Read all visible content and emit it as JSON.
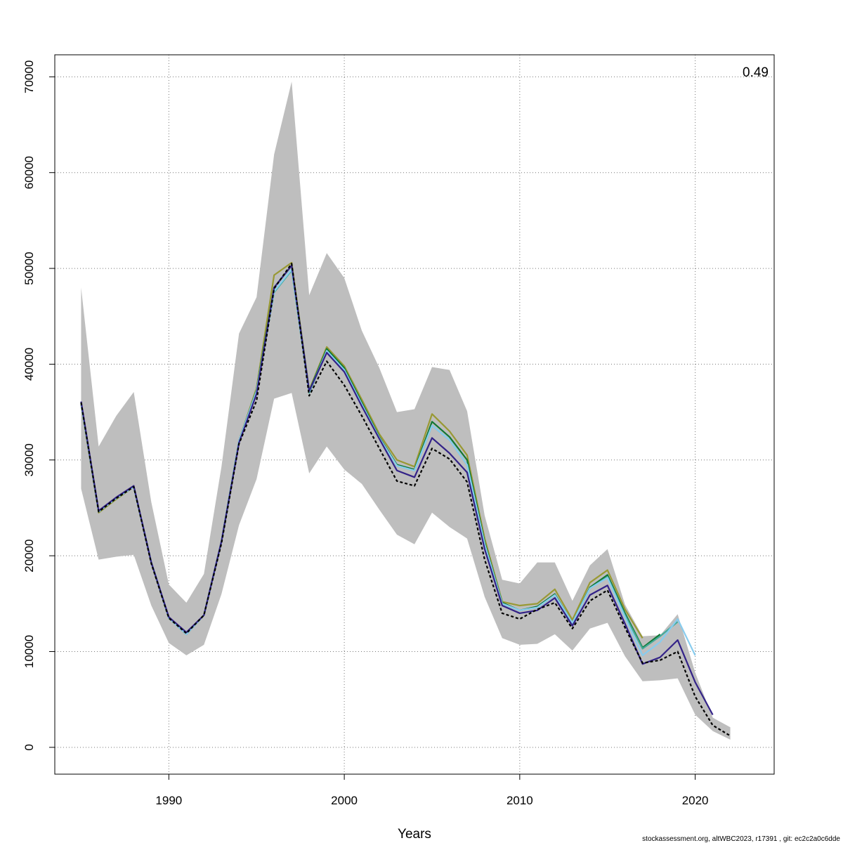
{
  "chart_data": {
    "type": "line",
    "title": "",
    "xlabel": "Years",
    "ylabel": "",
    "xlim": [
      1983.5,
      2024.5
    ],
    "ylim": [
      -2800,
      72300
    ],
    "xticks": [
      1990,
      2000,
      2010,
      2020
    ],
    "yticks": [
      0,
      10000,
      20000,
      30000,
      40000,
      50000,
      60000,
      70000
    ],
    "grid": true,
    "annotation": "0.49",
    "footer": "stockassessment.org, altWBC2023, r17391 , git: ec2c2a0c6dde",
    "band": {
      "color": "#bebebe",
      "x": [
        1985,
        1986,
        1987,
        1988,
        1989,
        1990,
        1991,
        1992,
        1993,
        1994,
        1995,
        1996,
        1997,
        1998,
        1999,
        2000,
        2001,
        2002,
        2003,
        2004,
        2005,
        2006,
        2007,
        2008,
        2009,
        2010,
        2011,
        2012,
        2013,
        2014,
        2015,
        2016,
        2017,
        2018,
        2019,
        2020,
        2021,
        2022
      ],
      "lower": [
        27000,
        19600,
        19900,
        20100,
        14800,
        10900,
        9600,
        10700,
        16000,
        23200,
        28000,
        36400,
        37000,
        28600,
        31400,
        29000,
        27500,
        24800,
        22200,
        21200,
        24500,
        23000,
        21800,
        15700,
        11400,
        10700,
        10800,
        11800,
        10100,
        12400,
        13000,
        9500,
        6900,
        7000,
        7200,
        3400,
        1700,
        800
      ],
      "upper": [
        48000,
        31400,
        34600,
        37100,
        25600,
        17000,
        15100,
        18100,
        29300,
        43200,
        47000,
        61900,
        69500,
        47200,
        51600,
        49000,
        43500,
        39600,
        35000,
        35300,
        39700,
        39400,
        35100,
        24200,
        17500,
        17100,
        19300,
        19300,
        15300,
        19000,
        20700,
        14900,
        11600,
        11700,
        13900,
        7800,
        3100,
        2100
      ]
    },
    "series": [
      {
        "color": "#999933",
        "x": [
          1985,
          1986,
          1987,
          1988,
          1989,
          1990,
          1991,
          1992,
          1993,
          1994,
          1995,
          1996,
          1997,
          1998,
          1999,
          2000,
          2001,
          2002,
          2003,
          2004,
          2005,
          2006,
          2007,
          2008,
          2009,
          2010,
          2011,
          2012,
          2013,
          2014,
          2015,
          2016,
          2017
        ],
        "values": [
          35800,
          24500,
          25900,
          27200,
          19300,
          13500,
          11800,
          13800,
          21500,
          32000,
          37500,
          49300,
          50600,
          37300,
          41800,
          39800,
          36300,
          32700,
          30000,
          29300,
          34800,
          33000,
          30500,
          21800,
          15200,
          14800,
          15000,
          16500,
          13300,
          17200,
          18500,
          14400,
          11400
        ]
      },
      {
        "color": "#117733",
        "x": [
          1985,
          1986,
          1987,
          1988,
          1989,
          1990,
          1991,
          1992,
          1993,
          1994,
          1995,
          1996,
          1997,
          1998,
          1999,
          2000,
          2001,
          2002,
          2003,
          2004,
          2005,
          2006,
          2007,
          2008,
          2009,
          2010,
          2011,
          2012,
          2013,
          2014,
          2015,
          2016,
          2017,
          2018
        ],
        "values": [
          35900,
          24600,
          26000,
          27200,
          19300,
          13500,
          11800,
          13800,
          21500,
          32000,
          37300,
          48000,
          50300,
          37200,
          41600,
          39600,
          36000,
          32400,
          29500,
          29000,
          34000,
          32400,
          30000,
          21400,
          15100,
          14300,
          14700,
          16000,
          13000,
          16700,
          18000,
          14000,
          10400,
          11800
        ]
      },
      {
        "color": "#44aa99",
        "x": [
          1985,
          1986,
          1987,
          1988,
          1989,
          1990,
          1991,
          1992,
          1993,
          1994,
          1995,
          1996,
          1997,
          1998,
          1999,
          2000,
          2001,
          2002,
          2003,
          2004,
          2005,
          2006,
          2007,
          2008,
          2009,
          2010,
          2011,
          2012,
          2013,
          2014,
          2015,
          2016,
          2017,
          2018,
          2019
        ],
        "values": [
          35900,
          24600,
          26000,
          27200,
          19300,
          13500,
          11800,
          13800,
          21500,
          32000,
          37200,
          47500,
          49800,
          37000,
          41400,
          39400,
          35800,
          32300,
          29400,
          28900,
          33600,
          32100,
          29500,
          21200,
          15000,
          14300,
          14600,
          15900,
          13000,
          16600,
          17800,
          13800,
          10300,
          11600,
          13100
        ]
      },
      {
        "color": "#88ccee",
        "x": [
          1985,
          1986,
          1987,
          1988,
          1989,
          1990,
          1991,
          1992,
          1993,
          1994,
          1995,
          1996,
          1997,
          1998,
          1999,
          2000,
          2001,
          2002,
          2003,
          2004,
          2005,
          2006,
          2007,
          2008,
          2009,
          2010,
          2011,
          2012,
          2013,
          2014,
          2015,
          2016,
          2017,
          2018,
          2019,
          2020
        ],
        "values": [
          35900,
          24600,
          26000,
          27200,
          19300,
          13500,
          11800,
          13800,
          21500,
          32000,
          37200,
          47600,
          49900,
          37100,
          41400,
          39400,
          35800,
          32300,
          29400,
          28900,
          33600,
          32100,
          29500,
          21200,
          15000,
          14300,
          14600,
          15900,
          13000,
          16600,
          17700,
          13600,
          9600,
          11000,
          13400,
          9600
        ]
      },
      {
        "color": "#332288",
        "x": [
          1985,
          1986,
          1987,
          1988,
          1989,
          1990,
          1991,
          1992,
          1993,
          1994,
          1995,
          1996,
          1997,
          1998,
          1999,
          2000,
          2001,
          2002,
          2003,
          2004,
          2005,
          2006,
          2007,
          2008,
          2009,
          2010,
          2011,
          2012,
          2013,
          2014,
          2015,
          2016,
          2017,
          2018,
          2019,
          2020,
          2021
        ],
        "values": [
          36100,
          24700,
          26100,
          27300,
          19300,
          13600,
          12000,
          13800,
          21500,
          31800,
          36900,
          48000,
          50300,
          37200,
          41200,
          39200,
          35600,
          32200,
          28900,
          28200,
          32300,
          30700,
          28700,
          20700,
          14800,
          14000,
          14300,
          15600,
          12700,
          15900,
          16900,
          12900,
          8700,
          9400,
          11200,
          6800,
          3400
        ]
      },
      {
        "color": "#000000",
        "dashed": true,
        "x": [
          1985,
          1986,
          1987,
          1988,
          1989,
          1990,
          1991,
          1992,
          1993,
          1994,
          1995,
          1996,
          1997,
          1998,
          1999,
          2000,
          2001,
          2002,
          2003,
          2004,
          2005,
          2006,
          2007,
          2008,
          2009,
          2010,
          2011,
          2012,
          2013,
          2014,
          2015,
          2016,
          2017,
          2018,
          2019,
          2020,
          2021,
          2022
        ],
        "values": [
          36000,
          24600,
          26000,
          27200,
          19200,
          13500,
          11900,
          13800,
          21300,
          31700,
          36200,
          47900,
          50500,
          36700,
          40300,
          37800,
          34600,
          31200,
          27800,
          27300,
          31200,
          30100,
          27700,
          19600,
          14000,
          13400,
          14400,
          15100,
          12400,
          15300,
          16400,
          12500,
          8800,
          9100,
          10000,
          5300,
          2300,
          1200
        ]
      }
    ]
  }
}
